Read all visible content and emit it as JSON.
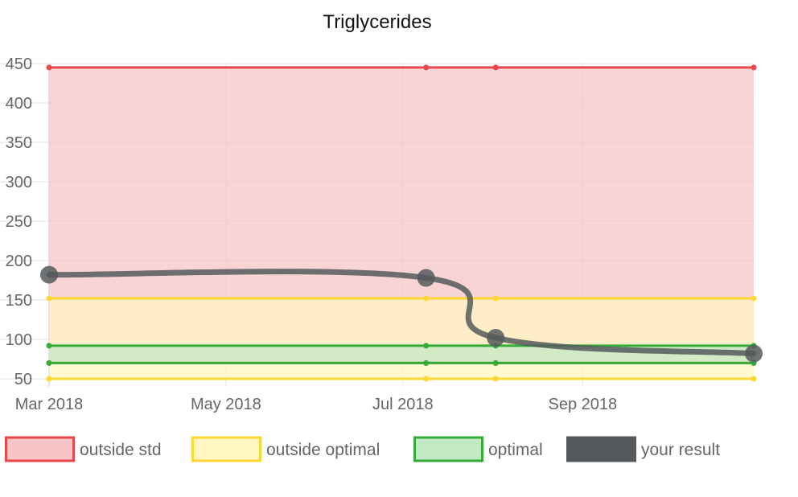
{
  "chart_data": {
    "type": "line",
    "title": "Triglycerides",
    "xlabel": "",
    "ylabel": "",
    "x_tick_labels": [
      "Mar 2018",
      "May 2018",
      "Jul 2018",
      "Sep 2018"
    ],
    "y_ticks": [
      50,
      100,
      150,
      200,
      250,
      300,
      350,
      400,
      450
    ],
    "ylim": [
      50,
      450
    ],
    "xlim": [
      "2018-03-01",
      "2018-10-30"
    ],
    "grid": true,
    "legend_position": "bottom",
    "bands": [
      {
        "name": "outside std",
        "color": "#e8474c",
        "fill": "#f7c5c6",
        "lower": 70,
        "upper": 445,
        "x": [
          "2018-03-01",
          "2018-07-09",
          "2018-08-02",
          "2018-10-30"
        ]
      },
      {
        "name": "outside optimal",
        "color": "#fdd835",
        "fill": "#fff6c2",
        "lower": 50,
        "upper": 152,
        "x": [
          "2018-03-01",
          "2018-07-09",
          "2018-08-02",
          "2018-10-30"
        ]
      },
      {
        "name": "optimal",
        "color": "#35ac3a",
        "fill": "#c3e8c4",
        "lower": 70,
        "upper": 92,
        "x": [
          "2018-03-01",
          "2018-07-09",
          "2018-08-02",
          "2018-10-30"
        ]
      }
    ],
    "series": [
      {
        "name": "your result",
        "color": "#55595c",
        "x": [
          "2018-03-01",
          "2018-07-09",
          "2018-08-02",
          "2018-10-30"
        ],
        "values": [
          182,
          178,
          102,
          82
        ]
      }
    ]
  }
}
